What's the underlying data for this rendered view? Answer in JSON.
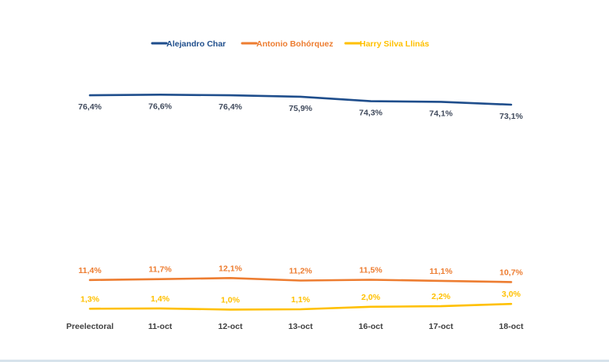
{
  "chart_data": {
    "type": "line",
    "title": "",
    "xlabel": "",
    "ylabel": "",
    "ylim": [
      0,
      85
    ],
    "grid": false,
    "legend_position": "top-center",
    "categories": [
      "Preelectoral",
      "11-oct",
      "12-oct",
      "13-oct",
      "16-oct",
      "17-oct",
      "18-oct"
    ],
    "series": [
      {
        "name": "Alejandro Char",
        "color": "#1f4e8c",
        "values": [
          76.4,
          76.6,
          76.4,
          75.9,
          74.3,
          74.1,
          73.1
        ],
        "labels": [
          "76,4%",
          "76,6%",
          "76,4%",
          "75,9%",
          "74,3%",
          "74,1%",
          "73,1%"
        ],
        "label_position": "below"
      },
      {
        "name": "Antonio Bohórquez",
        "color": "#ed7d31",
        "values": [
          11.4,
          11.7,
          12.1,
          11.2,
          11.5,
          11.1,
          10.7
        ],
        "labels": [
          "11,4%",
          "11,7%",
          "12,1%",
          "11,2%",
          "11,5%",
          "11,1%",
          "10,7%"
        ],
        "label_position": "above"
      },
      {
        "name": "Harry Silva Llinás",
        "color": "#ffc000",
        "values": [
          1.3,
          1.4,
          1.0,
          1.1,
          2.0,
          2.2,
          3.0
        ],
        "labels": [
          "1,3%",
          "1,4%",
          "1,0%",
          "1,1%",
          "2,0%",
          "2,2%",
          "3,0%"
        ],
        "label_position": "above"
      }
    ]
  }
}
